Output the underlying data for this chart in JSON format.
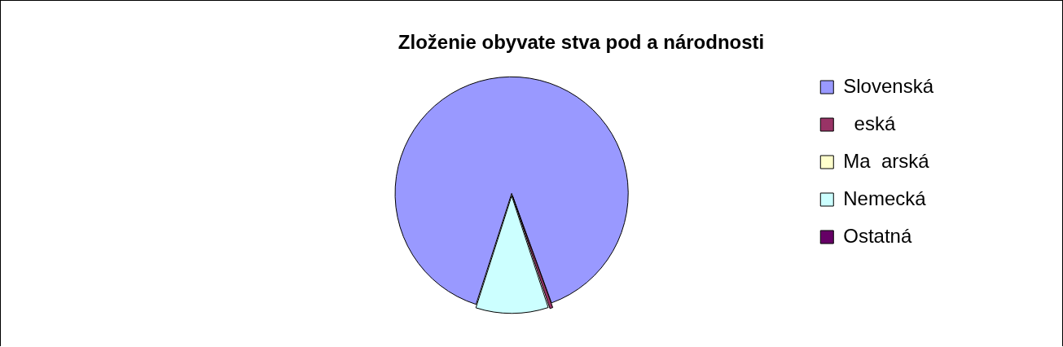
{
  "chart_data": {
    "type": "pie",
    "title": "Zloženie obyvate stva pod a národnosti",
    "categories": [
      "Slovenská",
      "  eská",
      "Ma  arská",
      "Nemecká",
      "Ostatná"
    ],
    "values": [
      89.5,
      0.5,
      0,
      10,
      0
    ],
    "colors": [
      "#9999ff",
      "#993366",
      "#ffffcc",
      "#ccffff",
      "#660066"
    ],
    "legend": "right"
  }
}
